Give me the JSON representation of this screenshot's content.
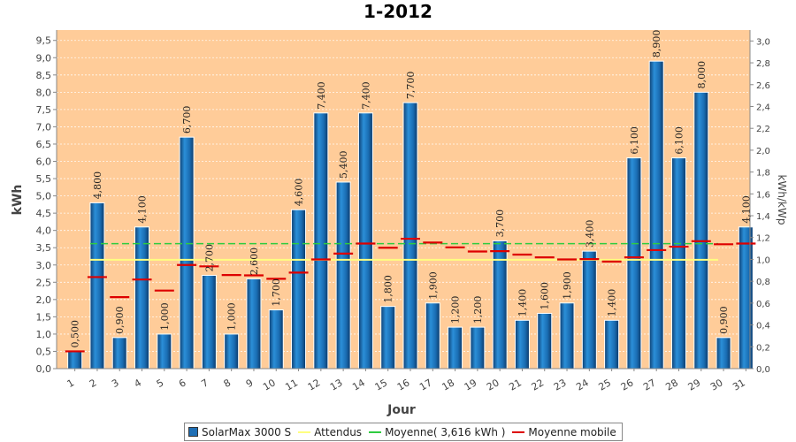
{
  "chart_data": {
    "type": "bar",
    "title": "1-2012",
    "xlabel": "Jour",
    "ylabel": "kWh",
    "y2label": "kWh/kWp",
    "ylim": [
      0,
      9.8
    ],
    "y2lim": [
      0,
      3.1
    ],
    "yticks": [
      "0,0",
      "0,5",
      "1,0",
      "1,5",
      "2,0",
      "2,5",
      "3,0",
      "3,5",
      "4,0",
      "4,5",
      "5,0",
      "5,5",
      "6,0",
      "6,5",
      "7,0",
      "7,5",
      "8,0",
      "8,5",
      "9,0",
      "9,5"
    ],
    "y2ticks": [
      "0,0",
      "0,2",
      "0,4",
      "0,6",
      "0,8",
      "1,0",
      "1,2",
      "1,4",
      "1,6",
      "1,8",
      "2,0",
      "2,2",
      "2,4",
      "2,6",
      "2,8",
      "3,0"
    ],
    "categories": [
      "1",
      "2",
      "3",
      "4",
      "5",
      "6",
      "7",
      "8",
      "9",
      "10",
      "11",
      "12",
      "13",
      "14",
      "15",
      "16",
      "17",
      "18",
      "19",
      "20",
      "21",
      "22",
      "23",
      "24",
      "25",
      "26",
      "27",
      "28",
      "29",
      "30",
      "31"
    ],
    "series": [
      {
        "name": "SolarMax 3000 S",
        "color": "#1f6fb5",
        "values": [
          0.5,
          4.8,
          0.9,
          4.1,
          1.0,
          6.7,
          2.7,
          1.0,
          2.6,
          1.7,
          4.6,
          7.4,
          5.4,
          7.4,
          1.8,
          7.7,
          1.9,
          1.2,
          1.2,
          3.7,
          1.4,
          1.6,
          1.9,
          3.4,
          1.4,
          6.1,
          8.9,
          6.1,
          8.0,
          0.9,
          4.1
        ],
        "labels": [
          "0,500",
          "4,800",
          "0,900",
          "4,100",
          "1,000",
          "6,700",
          "2,700",
          "1,000",
          "2,600",
          "1,700",
          "4,600",
          "7,400",
          "5,400",
          "7,400",
          "1,800",
          "7,700",
          "1,900",
          "1,200",
          "1,200",
          "3,700",
          "1,400",
          "1,600",
          "1,900",
          "3,400",
          "1,400",
          "6,100",
          "8,900",
          "6,100",
          "8,000",
          "0,900",
          "4,100"
        ]
      },
      {
        "name": "Attendus",
        "color": "#ffff80",
        "value": 3.15
      },
      {
        "name": "Moyenne( 3,616 kWh )",
        "color": "#2ecc40",
        "value": 3.616
      },
      {
        "name": "Moyenne mobile",
        "color": "#dd0000",
        "values": [
          0.5,
          2.65,
          2.07,
          2.58,
          2.26,
          3.0,
          2.96,
          2.71,
          2.7,
          2.6,
          2.78,
          3.16,
          3.33,
          3.62,
          3.5,
          3.76,
          3.65,
          3.51,
          3.39,
          3.4,
          3.3,
          3.22,
          3.16,
          3.17,
          3.1,
          3.22,
          3.43,
          3.53,
          3.69,
          3.6,
          3.62
        ]
      }
    ],
    "plot_bg": "#ffcc99"
  }
}
